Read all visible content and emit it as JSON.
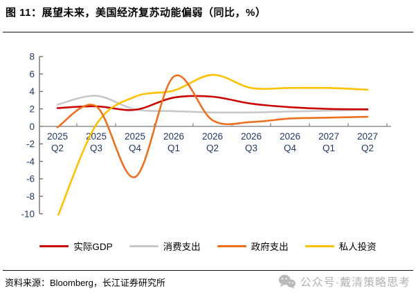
{
  "figure": {
    "title": "图 11：展望未来，美国经济复苏动能偏弱（同比，%）",
    "source": "资料来源：Bloomberg，长江证券研究所",
    "watermark": "公众号·戴清策略思考"
  },
  "chart_data": {
    "type": "line",
    "title": "展望未来，美国经济复苏动能偏弱（同比，%）",
    "categories": [
      "2025 Q2",
      "2025 Q3",
      "2025 Q4",
      "2026 Q1",
      "2026 Q2",
      "2026 Q3",
      "2026 Q4",
      "2027 Q1",
      "2027 Q2"
    ],
    "series": [
      {
        "name": "实际GDP",
        "color": "#cc0000",
        "values": [
          2.1,
          2.3,
          1.9,
          3.3,
          3.4,
          2.6,
          2.2,
          2.0,
          1.95
        ]
      },
      {
        "name": "消费支出",
        "color": "#c8c8c8",
        "values": [
          2.5,
          3.5,
          1.95,
          1.75,
          1.6,
          1.6,
          1.7,
          1.8,
          1.9
        ]
      },
      {
        "name": "政府支出",
        "color": "#ed6f1e",
        "values": [
          -0.1,
          2.3,
          -5.8,
          5.7,
          0.7,
          0.5,
          0.9,
          1.0,
          1.1
        ]
      },
      {
        "name": "私人投资",
        "color": "#ffc000",
        "values": [
          -10.4,
          0.2,
          3.4,
          4.1,
          5.9,
          4.4,
          4.4,
          4.4,
          4.2
        ]
      }
    ],
    "draw_order": [
      1,
      0,
      3,
      2
    ],
    "ylim": [
      -10,
      8
    ],
    "yticks": [
      8,
      6,
      4,
      2,
      0,
      -2,
      -4,
      -6,
      -8,
      -10
    ],
    "xlabel": "",
    "ylabel": "",
    "grid": false,
    "smooth": true,
    "legend_position": "bottom",
    "axis_label_color": "#1f3864",
    "x_axis_color": "#8f8f8f",
    "y_axis_color": "#6f6f6f"
  }
}
